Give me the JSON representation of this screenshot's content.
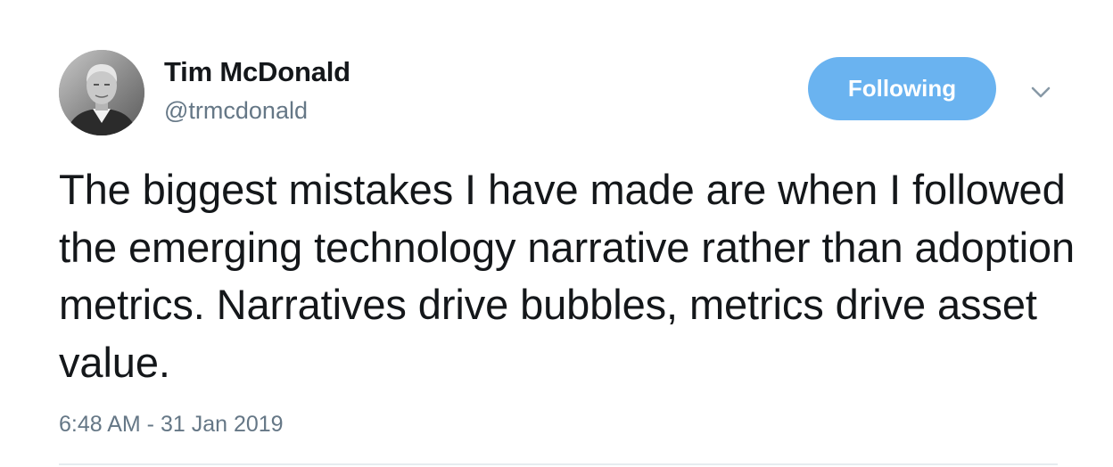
{
  "tweet": {
    "author": {
      "name": "Tim McDonald",
      "handle": "@trmcdonald",
      "avatar_icon": "profile-photo"
    },
    "follow_button_label": "Following",
    "menu_icon": "chevron-down-icon",
    "text": "The biggest mistakes I have made are when I followed the emerging technology narrative rather than adoption metrics. Narratives drive bubbles, metrics drive asset value.",
    "timestamp": "6:48 AM - 31 Jan 2019"
  },
  "colors": {
    "follow_button_bg": "#6ab3f0",
    "secondary_text": "#657786",
    "primary_text": "#14171a",
    "divider": "#e6ecf0"
  }
}
